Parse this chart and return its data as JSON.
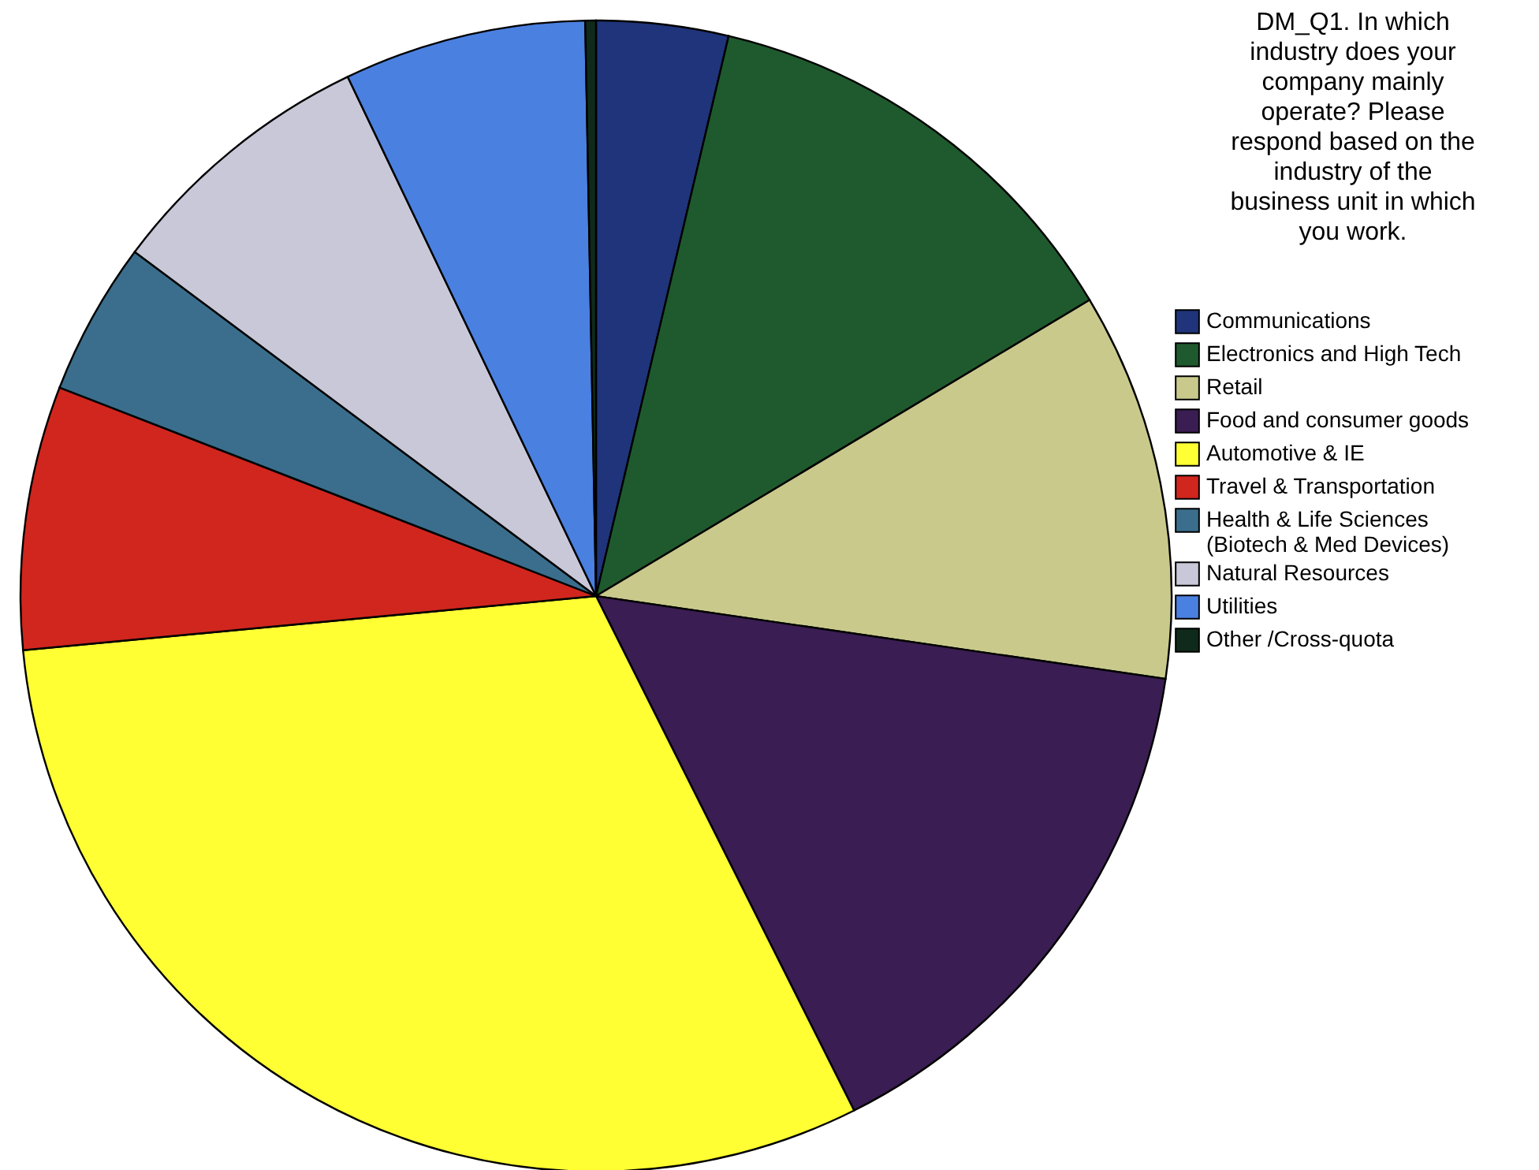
{
  "chart_data": {
    "type": "pie",
    "title": "DM_Q1. In which industry does your company mainly operate? Please respond based on the industry of the business unit in which you work.",
    "categories": [
      "Communications",
      "Electronics and High Tech",
      "Retail",
      "Food and consumer goods",
      "Automotive & IE",
      "Travel & Transportation",
      "Health & Life Sciences (Biotech & Med Devices)",
      "Natural Resources",
      "Utilities",
      "Other /Cross-quota"
    ],
    "values": [
      3.7,
      12.7,
      10.9,
      15.3,
      30.9,
      7.4,
      4.3,
      7.7,
      6.8,
      0.3
    ],
    "colors": [
      "#1f347a",
      "#1f5a2e",
      "#c9c98c",
      "#3a1d52",
      "#ffff33",
      "#d0261e",
      "#3a6e8c",
      "#c8c8d8",
      "#4a80e0",
      "#0f2a1a"
    ],
    "legend": "right"
  }
}
